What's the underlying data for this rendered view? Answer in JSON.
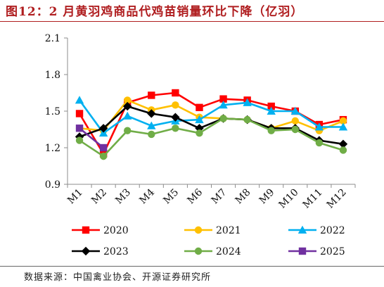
{
  "figure": {
    "title": "图12：2 月黄羽鸡商品代鸡苗销量环比下降（亿羽）",
    "source": "数据来源：中国禽业协会、开源证券研究所"
  },
  "chart_data": {
    "type": "line",
    "title": "图12：2 月黄羽鸡商品代鸡苗销量环比下降（亿羽）",
    "xlabel": "",
    "ylabel": "",
    "categories": [
      "M1",
      "M2",
      "M3",
      "M4",
      "M5",
      "M6",
      "M7",
      "M8",
      "M9",
      "M10",
      "M11",
      "M12"
    ],
    "ylim": [
      0.9,
      2.1
    ],
    "yticks": [
      0.9,
      1.2,
      1.5,
      1.8,
      2.1
    ],
    "ytick_labels": [
      "0.9",
      "1.2",
      "1.5",
      "1.8",
      "2.1"
    ],
    "grid": false,
    "legend_position": "bottom",
    "series": [
      {
        "name": "2020",
        "color": "#ff0000",
        "marker": "square",
        "values": [
          1.48,
          1.15,
          1.57,
          1.63,
          1.65,
          1.53,
          1.6,
          1.59,
          1.54,
          1.5,
          1.39,
          1.43
        ]
      },
      {
        "name": "2021",
        "color": "#ffc000",
        "marker": "circle",
        "values": [
          1.36,
          1.34,
          1.59,
          1.51,
          1.55,
          1.45,
          1.44,
          1.43,
          1.36,
          1.42,
          1.34,
          1.42
        ]
      },
      {
        "name": "2022",
        "color": "#00b0f0",
        "marker": "triangle",
        "values": [
          1.59,
          1.32,
          1.46,
          1.38,
          1.42,
          1.43,
          1.55,
          1.57,
          1.5,
          1.5,
          1.37,
          1.37
        ]
      },
      {
        "name": "2023",
        "color": "#000000",
        "marker": "diamond",
        "values": [
          1.29,
          1.36,
          1.54,
          1.48,
          1.45,
          1.36,
          1.44,
          1.43,
          1.36,
          1.36,
          1.26,
          1.23
        ]
      },
      {
        "name": "2024",
        "color": "#70ad47",
        "marker": "circle",
        "values": [
          1.26,
          1.13,
          1.34,
          1.31,
          1.36,
          1.32,
          1.44,
          1.43,
          1.34,
          1.35,
          1.24,
          1.18
        ]
      },
      {
        "name": "2025",
        "color": "#7030a0",
        "marker": "square",
        "values": [
          1.36,
          1.2,
          null,
          null,
          null,
          null,
          null,
          null,
          null,
          null,
          null,
          null
        ]
      }
    ]
  }
}
